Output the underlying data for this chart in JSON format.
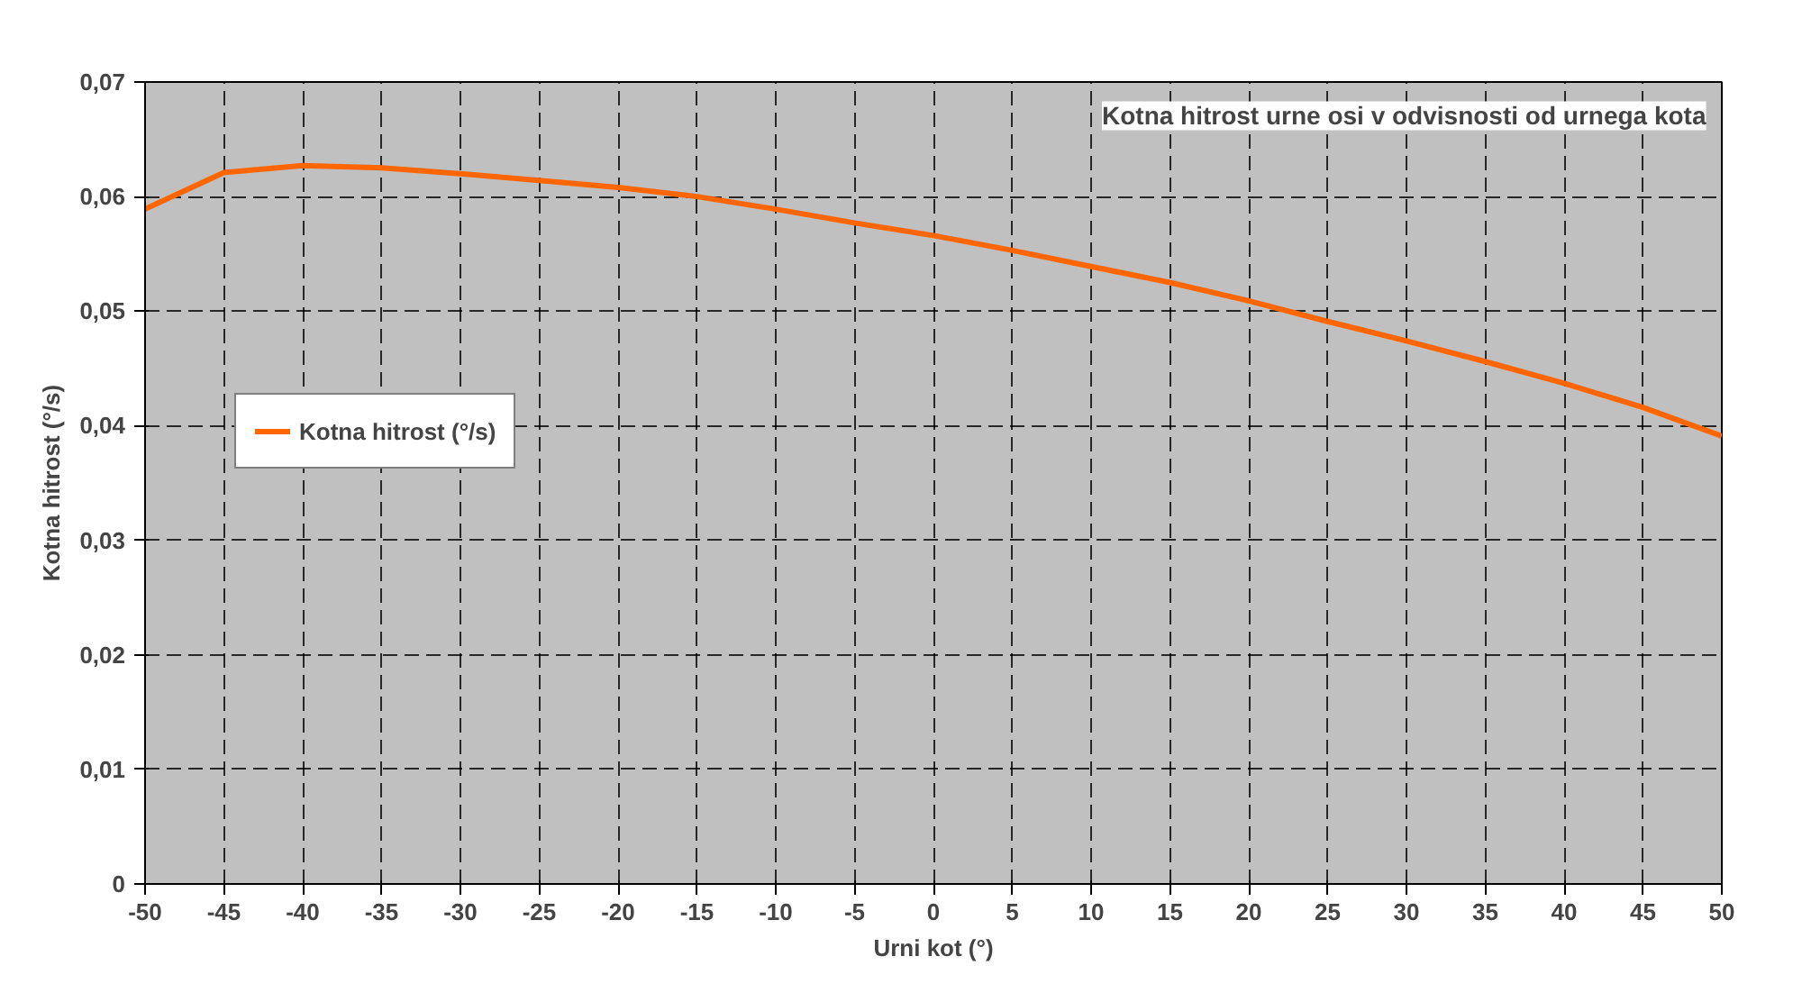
{
  "chart_data": {
    "type": "line",
    "title": "Kotna hitrost urne osi v odvisnosti od urnega kota",
    "xlabel": "Urni kot (°)",
    "ylabel": "Kotna hitrost (°/s)",
    "x": [
      -50,
      -45,
      -40,
      -35,
      -30,
      -25,
      -20,
      -15,
      -10,
      -5,
      0,
      5,
      10,
      15,
      20,
      25,
      30,
      35,
      40,
      45,
      50
    ],
    "series": [
      {
        "name": "Kotna hitrost (°/s)",
        "color": "#ff6600",
        "values": [
          0.0589,
          0.0621,
          0.0627,
          0.0625,
          0.062,
          0.0614,
          0.0608,
          0.06,
          0.0589,
          0.0577,
          0.0566,
          0.0553,
          0.0539,
          0.0525,
          0.0509,
          0.0491,
          0.0474,
          0.0456,
          0.0437,
          0.0416,
          0.0391
        ]
      }
    ],
    "xlim": [
      -50,
      50
    ],
    "xticks": [
      -50,
      -45,
      -40,
      -35,
      -30,
      -25,
      -20,
      -15,
      -10,
      -5,
      0,
      5,
      10,
      15,
      20,
      25,
      30,
      35,
      40,
      45,
      50
    ],
    "ylim": [
      0,
      0.07
    ],
    "yticks": [
      0,
      {
        "value": 0.01,
        "label": "0,01"
      },
      {
        "value": 0.02,
        "label": "0,02"
      },
      {
        "value": 0.03,
        "label": "0,03"
      },
      {
        "value": 0.04,
        "label": "0,04"
      },
      {
        "value": 0.05,
        "label": "0,05"
      },
      {
        "value": 0.06,
        "label": "0,06"
      },
      {
        "value": 0.07,
        "label": "0,07"
      }
    ],
    "grid": true,
    "legend": "left",
    "marker": "none",
    "line_style": "solid"
  }
}
